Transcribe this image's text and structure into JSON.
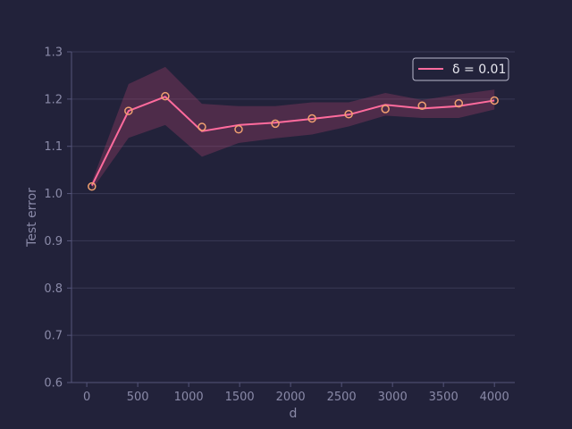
{
  "chart_data": {
    "type": "line",
    "title": "",
    "xlabel": "d",
    "ylabel": "Test error",
    "xlim": [
      -150,
      4200
    ],
    "ylim": [
      0.6,
      1.3
    ],
    "xticks": [
      0,
      500,
      1000,
      1500,
      2000,
      2500,
      3000,
      3500,
      4000
    ],
    "yticks": [
      0.6,
      0.7,
      0.8,
      0.9,
      1.0,
      1.1,
      1.2,
      1.3
    ],
    "xtick_labels": [
      "0",
      "500",
      "1000",
      "1500",
      "2000",
      "2500",
      "3000",
      "3500",
      "4000"
    ],
    "ytick_labels": [
      "0.6",
      "0.7",
      "0.8",
      "0.9",
      "1.0",
      "1.1",
      "1.2",
      "1.3"
    ],
    "grid": true,
    "legend_position": "top-right",
    "series": [
      {
        "name": "δ = 0.01",
        "color": "#ff6b9d",
        "band_color": "#a0406a",
        "marker_color": "#f0a070",
        "x": [
          50,
          410,
          770,
          1130,
          1490,
          1850,
          2210,
          2570,
          2930,
          3290,
          3650,
          4000
        ],
        "line": [
          1.017,
          1.175,
          1.205,
          1.132,
          1.145,
          1.15,
          1.158,
          1.167,
          1.188,
          1.18,
          1.185,
          1.197
        ],
        "markers": [
          1.015,
          1.175,
          1.206,
          1.141,
          1.136,
          1.148,
          1.159,
          1.168,
          1.179,
          1.186,
          1.191,
          1.197
        ],
        "upper": [
          1.025,
          1.232,
          1.268,
          1.19,
          1.185,
          1.185,
          1.193,
          1.193,
          1.213,
          1.198,
          1.21,
          1.22
        ],
        "lower": [
          1.008,
          1.118,
          1.145,
          1.078,
          1.107,
          1.117,
          1.125,
          1.142,
          1.165,
          1.16,
          1.16,
          1.178
        ]
      }
    ]
  }
}
